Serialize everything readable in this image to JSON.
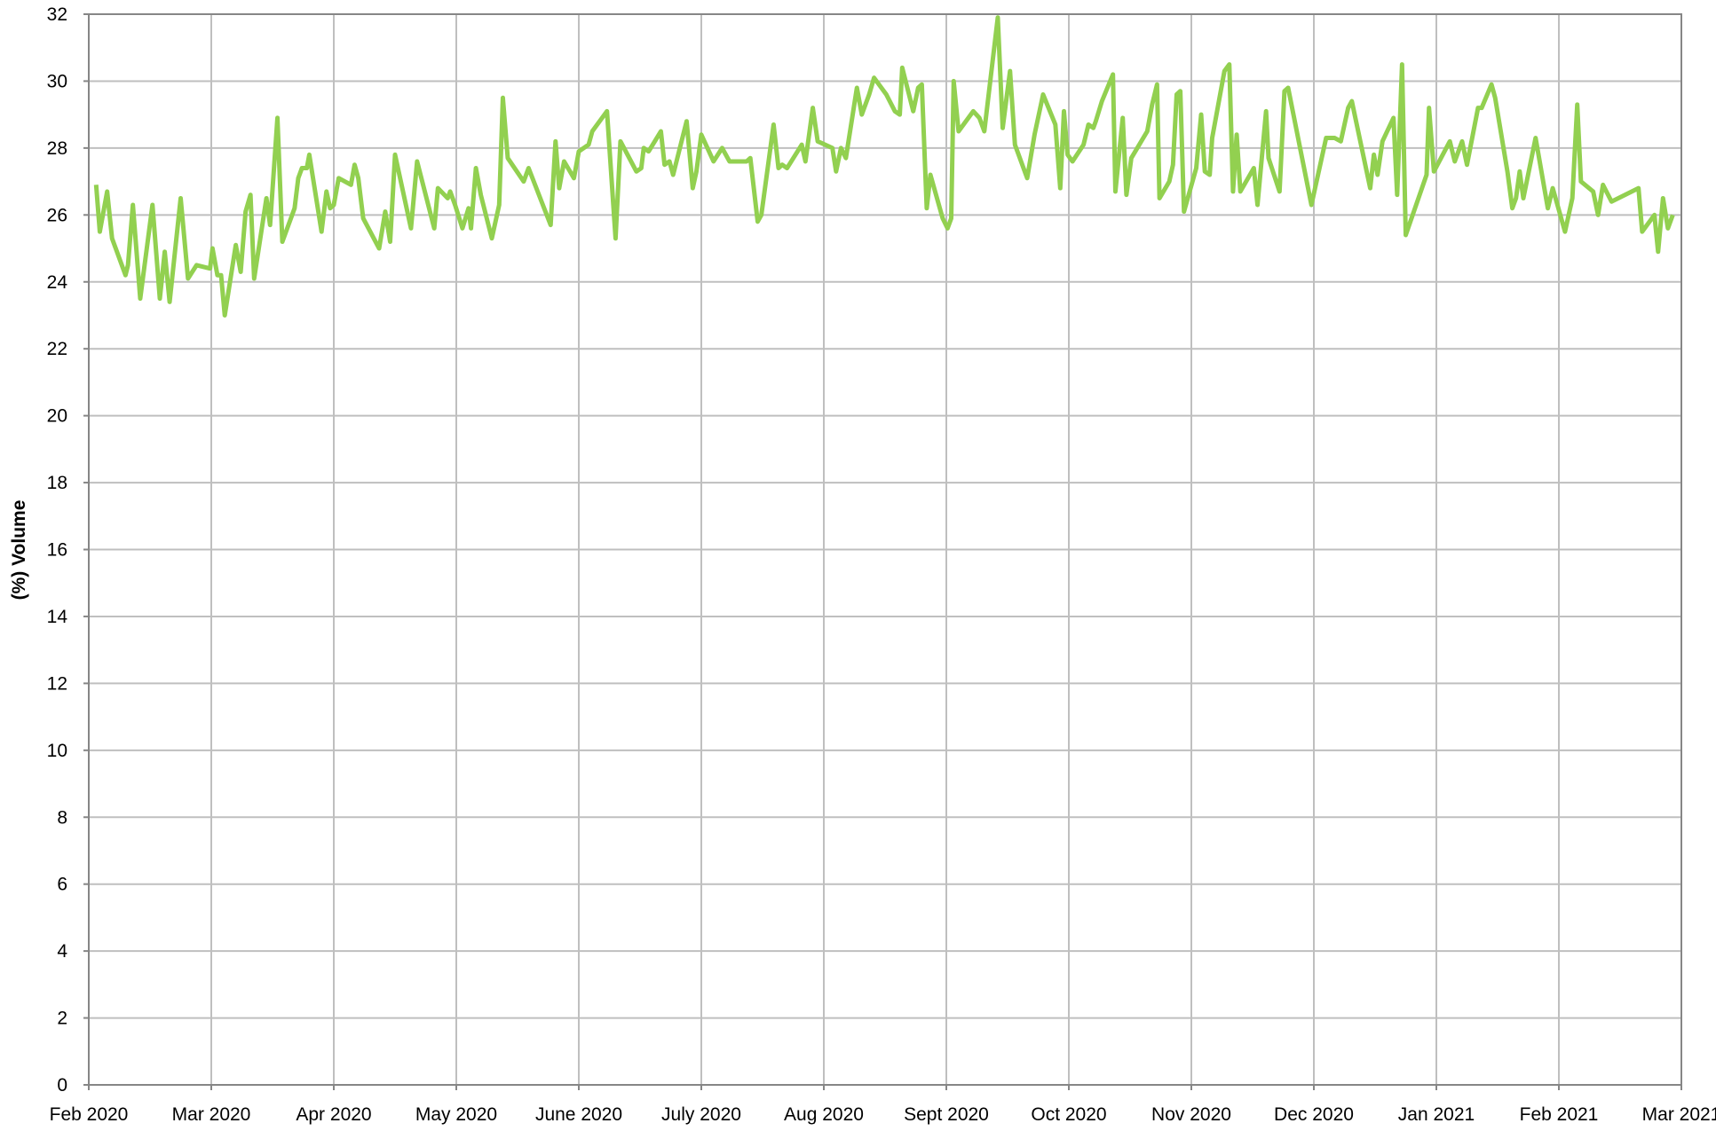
{
  "chart_data": {
    "type": "line",
    "y_label": "(%) Volume",
    "xlim": [
      0,
      13
    ],
    "xticks": [
      {
        "value": 0,
        "label": "Feb 2020"
      },
      {
        "value": 1,
        "label": "Mar 2020"
      },
      {
        "value": 2,
        "label": "Apr 2020"
      },
      {
        "value": 3,
        "label": "May 2020"
      },
      {
        "value": 4,
        "label": "June 2020"
      },
      {
        "value": 5,
        "label": "July 2020"
      },
      {
        "value": 6,
        "label": "Aug 2020"
      },
      {
        "value": 7,
        "label": "Sept 2020"
      },
      {
        "value": 8,
        "label": "Oct 2020"
      },
      {
        "value": 9,
        "label": "Nov 2020"
      },
      {
        "value": 10,
        "label": "Dec 2020"
      },
      {
        "value": 11,
        "label": "Jan 2021"
      },
      {
        "value": 12,
        "label": "Feb 2021"
      },
      {
        "value": 13,
        "label": "Mar 2021"
      }
    ],
    "ylim": [
      0,
      32
    ],
    "yticks": [
      0,
      2,
      4,
      6,
      8,
      10,
      12,
      14,
      16,
      18,
      20,
      22,
      24,
      26,
      28,
      30,
      32
    ],
    "grid": true,
    "x": [
      0.06,
      0.09,
      0.15,
      0.19,
      0.3,
      0.32,
      0.36,
      0.42,
      0.52,
      0.58,
      0.62,
      0.66,
      0.75,
      0.81,
      0.88,
      0.99,
      1.01,
      1.05,
      1.08,
      1.11,
      1.2,
      1.24,
      1.28,
      1.32,
      1.35,
      1.45,
      1.48,
      1.54,
      1.58,
      1.68,
      1.71,
      1.74,
      1.78,
      1.8,
      1.9,
      1.94,
      1.97,
      2.0,
      2.04,
      2.14,
      2.17,
      2.2,
      2.24,
      2.37,
      2.42,
      2.46,
      2.5,
      2.63,
      2.68,
      2.82,
      2.85,
      2.93,
      2.95,
      2.99,
      3.05,
      3.1,
      3.12,
      3.16,
      3.2,
      3.29,
      3.35,
      3.38,
      3.42,
      3.55,
      3.59,
      3.77,
      3.81,
      3.84,
      3.88,
      3.96,
      4.0,
      4.08,
      4.11,
      4.23,
      4.3,
      4.34,
      4.47,
      4.51,
      4.53,
      4.57,
      4.67,
      4.7,
      4.74,
      4.77,
      4.88,
      4.93,
      4.96,
      5.0,
      5.1,
      5.17,
      5.23,
      5.37,
      5.4,
      5.46,
      5.49,
      5.59,
      5.63,
      5.66,
      5.7,
      5.82,
      5.85,
      5.91,
      5.95,
      6.07,
      6.1,
      6.14,
      6.18,
      6.27,
      6.31,
      6.37,
      6.41,
      6.51,
      6.58,
      6.62,
      6.64,
      6.73,
      6.77,
      6.8,
      6.84,
      6.87,
      6.97,
      7.01,
      7.04,
      7.06,
      7.1,
      7.22,
      7.27,
      7.31,
      7.42,
      7.46,
      7.52,
      7.56,
      7.66,
      7.72,
      7.79,
      7.89,
      7.93,
      7.96,
      7.99,
      8.03,
      8.12,
      8.16,
      8.2,
      8.22,
      8.27,
      8.36,
      8.38,
      8.44,
      8.47,
      8.51,
      8.64,
      8.68,
      8.72,
      8.74,
      8.82,
      8.85,
      8.88,
      8.91,
      8.94,
      9.04,
      9.08,
      9.11,
      9.15,
      9.17,
      9.27,
      9.31,
      9.34,
      9.37,
      9.4,
      9.51,
      9.54,
      9.61,
      9.63,
      9.72,
      9.76,
      9.79,
      9.98,
      10.1,
      10.17,
      10.22,
      10.25,
      10.28,
      10.31,
      10.46,
      10.49,
      10.52,
      10.56,
      10.65,
      10.68,
      10.72,
      10.75,
      10.92,
      10.94,
      10.98,
      11.11,
      11.15,
      11.21,
      11.25,
      11.34,
      11.37,
      11.45,
      11.48,
      11.58,
      11.62,
      11.65,
      11.68,
      11.71,
      11.81,
      11.91,
      11.95,
      12.05,
      12.11,
      12.15,
      12.18,
      12.28,
      12.32,
      12.36,
      12.43,
      12.65,
      12.68,
      12.78,
      12.81,
      12.85,
      12.89,
      12.93
    ],
    "series": [
      {
        "color": "#92d050",
        "values": [
          26.9,
          25.5,
          26.7,
          25.3,
          24.2,
          24.5,
          26.3,
          23.5,
          26.3,
          23.5,
          24.9,
          23.4,
          26.5,
          24.1,
          24.5,
          24.4,
          25.0,
          24.2,
          24.2,
          23.0,
          25.1,
          24.3,
          26.1,
          26.6,
          24.1,
          26.5,
          25.7,
          28.9,
          25.2,
          26.2,
          27.1,
          27.4,
          27.4,
          27.8,
          25.5,
          26.7,
          26.2,
          26.3,
          27.1,
          26.9,
          27.5,
          27.1,
          25.9,
          25.0,
          26.1,
          25.2,
          27.8,
          25.6,
          27.6,
          25.6,
          26.8,
          26.5,
          26.7,
          26.3,
          25.6,
          26.2,
          25.6,
          27.4,
          26.6,
          25.3,
          26.3,
          29.5,
          27.7,
          27.0,
          27.4,
          25.7,
          28.2,
          26.8,
          27.6,
          27.1,
          27.9,
          28.1,
          28.5,
          29.1,
          25.3,
          28.2,
          27.3,
          27.4,
          28.0,
          27.9,
          28.5,
          27.5,
          27.6,
          27.2,
          28.8,
          26.8,
          27.3,
          28.4,
          27.6,
          28.0,
          27.6,
          27.6,
          27.7,
          25.8,
          26.0,
          28.7,
          27.4,
          27.5,
          27.4,
          28.1,
          27.6,
          29.2,
          28.2,
          28.0,
          27.3,
          28.0,
          27.7,
          29.8,
          29.0,
          29.6,
          30.1,
          29.6,
          29.1,
          29.0,
          30.4,
          29.1,
          29.8,
          29.9,
          26.2,
          27.2,
          25.9,
          25.6,
          25.9,
          30.0,
          28.5,
          29.1,
          28.9,
          28.5,
          31.9,
          28.6,
          30.3,
          28.1,
          27.1,
          28.4,
          29.6,
          28.7,
          26.8,
          29.1,
          27.8,
          27.6,
          28.1,
          28.7,
          28.6,
          28.8,
          29.4,
          30.2,
          26.7,
          28.9,
          26.6,
          27.7,
          28.5,
          29.3,
          29.9,
          26.5,
          27.0,
          27.5,
          29.6,
          29.7,
          26.1,
          27.4,
          29.0,
          27.3,
          27.2,
          28.3,
          30.3,
          30.5,
          26.7,
          28.4,
          26.7,
          27.4,
          26.3,
          29.1,
          27.7,
          26.7,
          29.7,
          29.8,
          26.3,
          28.3,
          28.3,
          28.2,
          28.7,
          29.2,
          29.4,
          26.8,
          27.8,
          27.2,
          28.2,
          28.9,
          26.6,
          30.5,
          25.4,
          27.2,
          29.2,
          27.3,
          28.2,
          27.6,
          28.2,
          27.5,
          29.2,
          29.2,
          29.9,
          29.5,
          27.3,
          26.2,
          26.5,
          27.3,
          26.5,
          28.3,
          26.2,
          26.8,
          25.5,
          26.5,
          29.3,
          27.0,
          26.7,
          26.0,
          26.9,
          26.4,
          26.8,
          25.5,
          26.0,
          24.9,
          26.5,
          25.6,
          26.0
        ]
      }
    ]
  }
}
